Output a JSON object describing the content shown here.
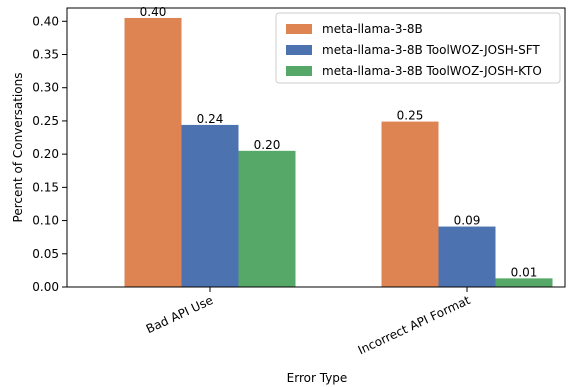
{
  "chart_data": {
    "type": "bar",
    "categories": [
      "Bad API Use",
      "Incorrect API Format"
    ],
    "series": [
      {
        "name": "meta-llama-3-8B",
        "values": [
          0.405,
          0.249
        ],
        "labels": [
          "0.40",
          "0.25"
        ],
        "color": "#DD8452"
      },
      {
        "name": "meta-llama-3-8B ToolWOZ-JOSH-SFT",
        "values": [
          0.244,
          0.091
        ],
        "labels": [
          "0.24",
          "0.09"
        ],
        "color": "#4C72B0"
      },
      {
        "name": "meta-llama-3-8B ToolWOZ-JOSH-KTO",
        "values": [
          0.205,
          0.013
        ],
        "labels": [
          "0.20",
          "0.01"
        ],
        "color": "#55A868"
      }
    ],
    "xlabel": "Error Type",
    "ylabel": "Percent of Conversations",
    "ylim": [
      0,
      0.42
    ],
    "yticks": [
      "0.00",
      "0.05",
      "0.10",
      "0.15",
      "0.20",
      "0.25",
      "0.30",
      "0.35",
      "0.40"
    ],
    "grid": false,
    "legend_position": "upper-right"
  }
}
